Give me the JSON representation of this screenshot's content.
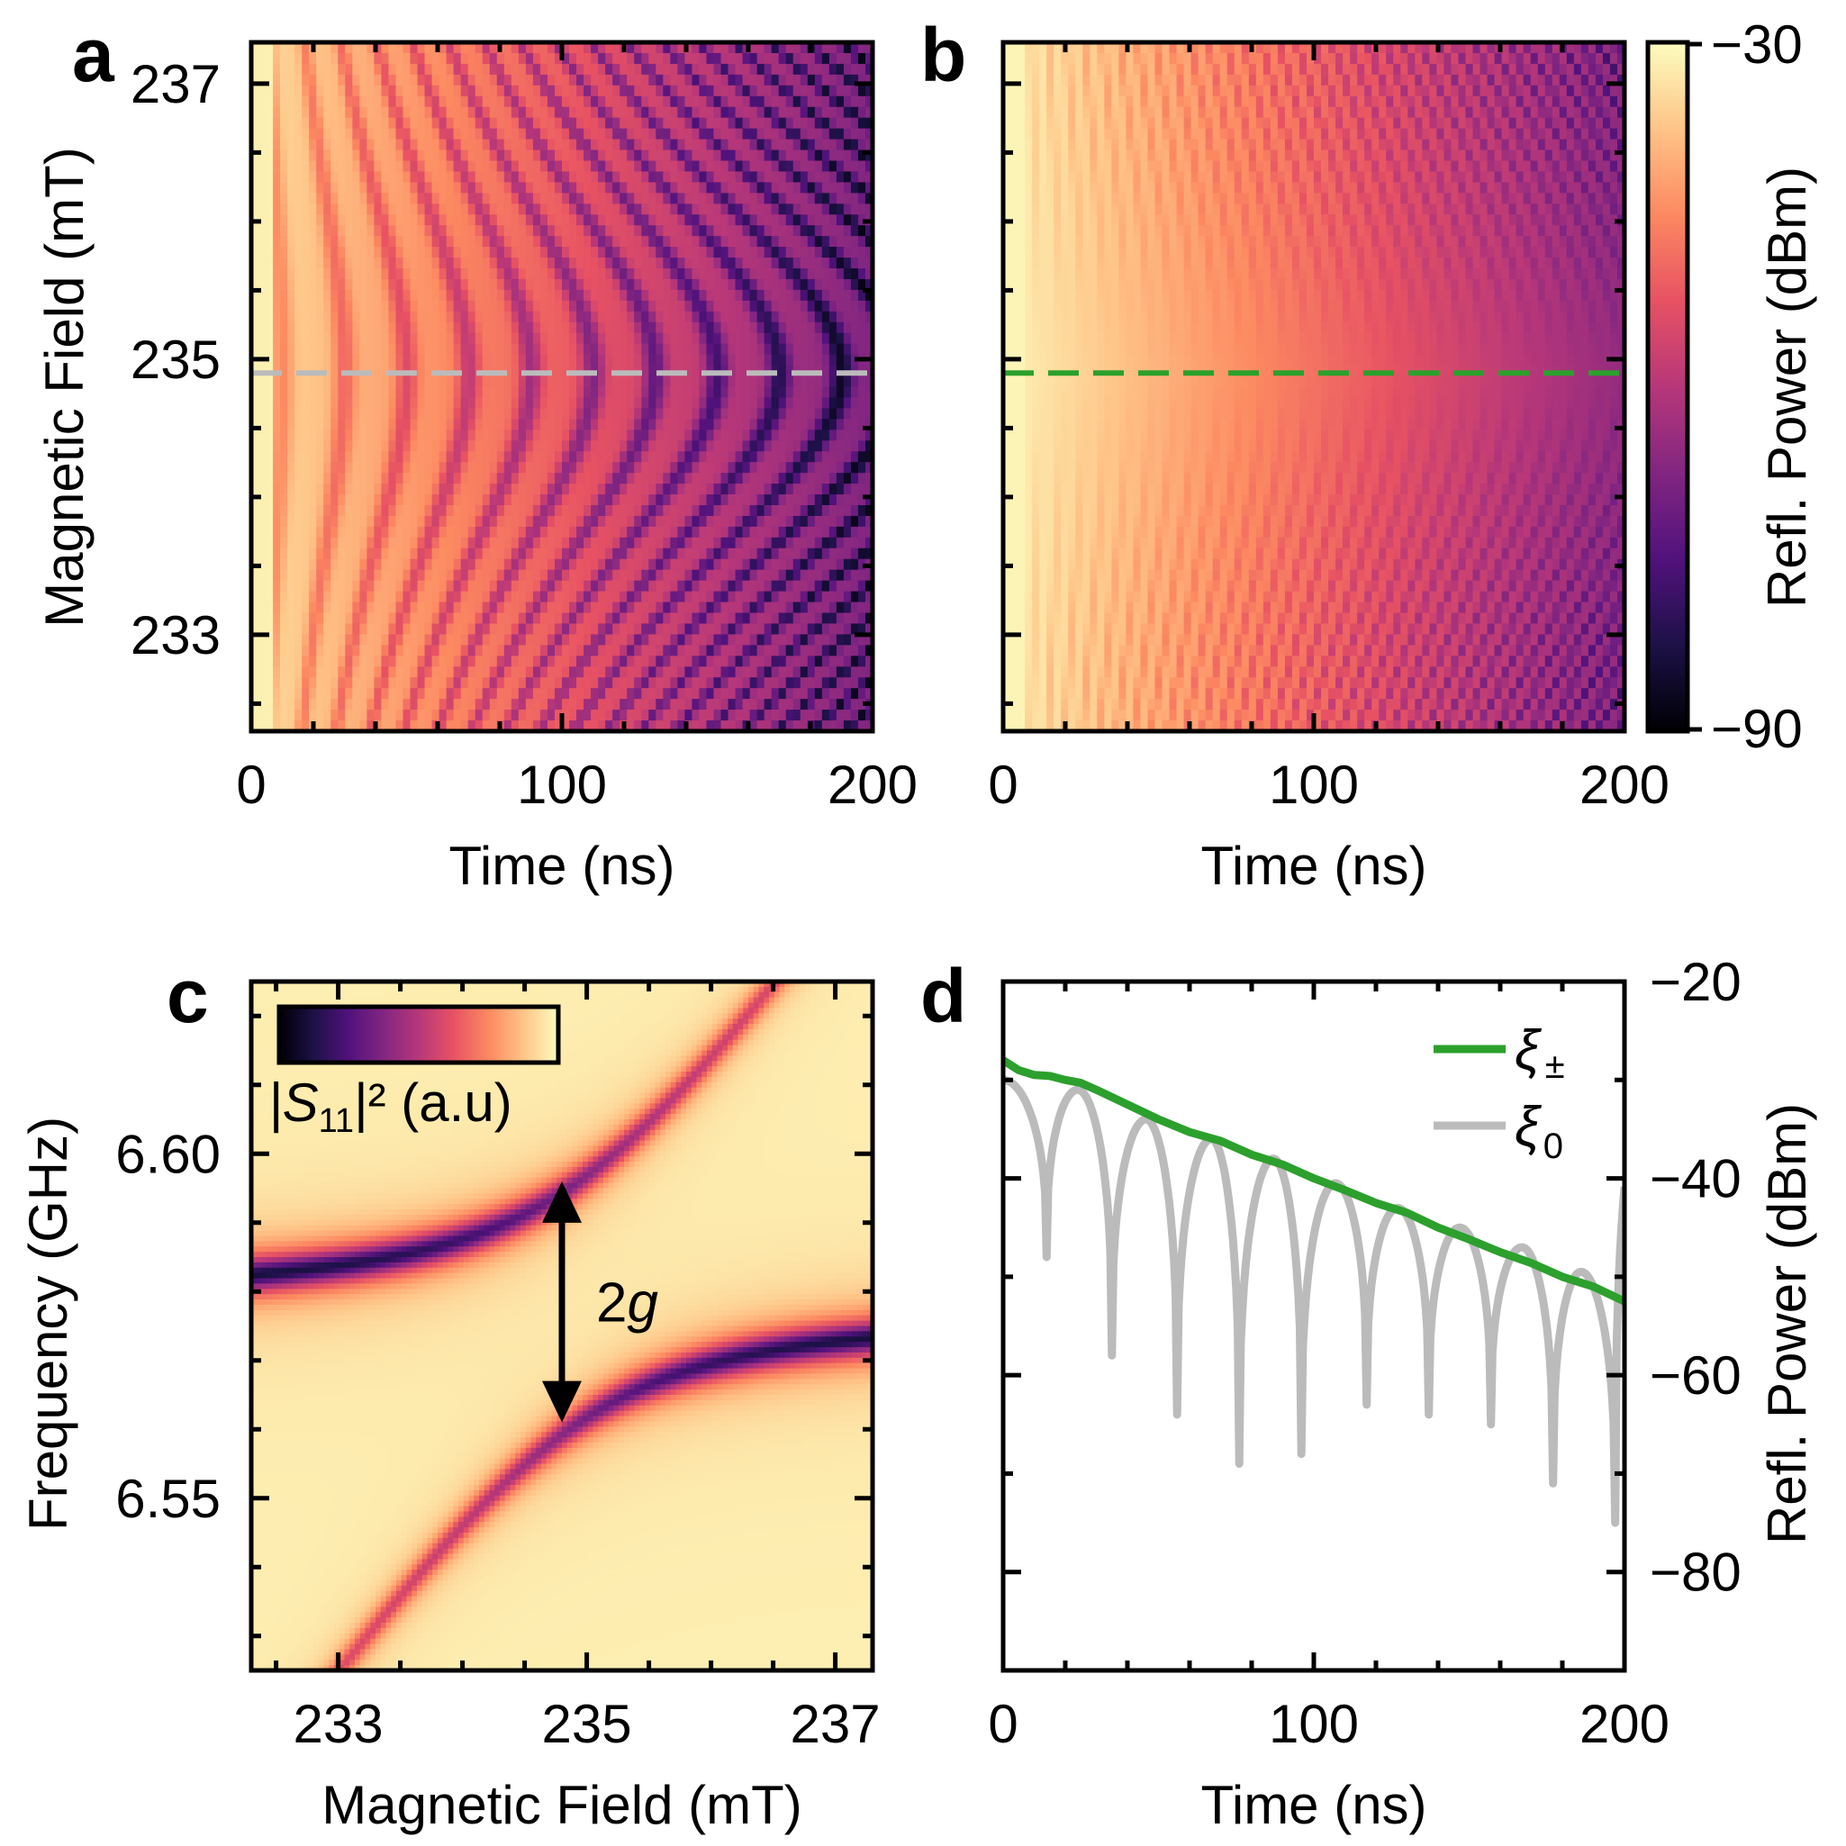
{
  "colors": {
    "green": "#2ca02c",
    "gray": "#bbbbbb",
    "magma": [
      "#000004",
      "#1d1147",
      "#51127c",
      "#822681",
      "#b73779",
      "#e75263",
      "#fc8961",
      "#fec488",
      "#fcfdbf"
    ]
  },
  "panels": {
    "a": {
      "letter": "a"
    },
    "b": {
      "letter": "b"
    },
    "c": {
      "letter": "c"
    },
    "d": {
      "letter": "d"
    }
  },
  "chart_data": [
    {
      "panel": "a",
      "type": "heatmap",
      "xlabel": "Time (ns)",
      "ylabel": "Magnetic Field (mT)",
      "xlim": [
        0,
        200
      ],
      "ylim": [
        232.3,
        237.3
      ],
      "x_ticks": [
        "0",
        "100",
        "200"
      ],
      "y_ticks": [
        "233",
        "235",
        "237"
      ],
      "y_tick_values": [
        233,
        235,
        237
      ],
      "z_units": "dBm",
      "z_range": [
        -90,
        -30
      ],
      "reference_line": {
        "axis": "y",
        "value": 234.9,
        "color": "gray",
        "style": "dashed"
      },
      "description_values": {
        "oscillation_period_ns": 20
      }
    },
    {
      "panel": "b",
      "type": "heatmap",
      "xlabel": "Time (ns)",
      "ylabel": "",
      "xlim": [
        0,
        200
      ],
      "ylim": [
        232.3,
        237.3
      ],
      "x_ticks": [
        "0",
        "100",
        "200"
      ],
      "z_units": "dBm",
      "z_range": [
        -90,
        -30
      ],
      "colorbar": {
        "label": "Refl. Power (dBm)",
        "ticks": [
          "−30",
          "−90"
        ],
        "range": [
          -90,
          -30
        ]
      },
      "reference_line": {
        "axis": "y",
        "value": 234.9,
        "color": "green",
        "style": "dashed"
      }
    },
    {
      "panel": "c",
      "type": "heatmap",
      "xlabel": "Magnetic Field (mT)",
      "ylabel": "Frequency (GHz)",
      "xlim": [
        232.3,
        237.3
      ],
      "ylim": [
        6.525,
        6.625
      ],
      "x_ticks": [
        "233",
        "235",
        "237"
      ],
      "x_tick_values": [
        233,
        235,
        237
      ],
      "y_ticks": [
        "6.60",
        "6.55"
      ],
      "y_tick_values": [
        6.6,
        6.55
      ],
      "colorbar": {
        "label_main": "|S",
        "label_sub": "11",
        "label_rest": "|² (a.u)"
      },
      "annotation": {
        "text": "2",
        "text_italic": "g",
        "field_mT": 234.8,
        "freq_top_GHz": 6.596,
        "freq_bottom_GHz": 6.561
      },
      "avoided_crossing": {
        "center_field_mT": 234.9,
        "center_freq_GHz": 6.578,
        "coupling_g_GHz": 0.0175
      }
    },
    {
      "panel": "d",
      "type": "line",
      "xlabel": "Time (ns)",
      "ylabel": "Refl. Power (dBm)",
      "xlim": [
        0,
        200
      ],
      "ylim": [
        -90,
        -20
      ],
      "x_ticks": [
        "0",
        "100",
        "200"
      ],
      "y_ticks": [
        "−20",
        "−40",
        "−60",
        "−80"
      ],
      "y_tick_values": [
        -20,
        -40,
        -60,
        -80
      ],
      "series": [
        {
          "name": "ξ±",
          "legend_main": "ξ",
          "legend_sub": "±",
          "color": "green",
          "x": [
            0,
            5,
            10,
            15,
            20,
            25,
            30,
            40,
            50,
            60,
            70,
            80,
            90,
            100,
            110,
            120,
            130,
            140,
            150,
            160,
            170,
            180,
            190,
            200
          ],
          "y": [
            -28,
            -29,
            -29.5,
            -29.6,
            -30,
            -30.3,
            -31,
            -32.5,
            -34,
            -35.3,
            -36.2,
            -37.6,
            -38.6,
            -40,
            -41.2,
            -42.5,
            -43.5,
            -45,
            -46.2,
            -47.5,
            -48.6,
            -50,
            -51,
            -52.5
          ]
        },
        {
          "name": "ξ0",
          "legend_main": "ξ",
          "legend_sub": "0",
          "color": "gray",
          "peaks_x": [
            0,
            24,
            46,
            67,
            87,
            107,
            127,
            147,
            167,
            186
          ],
          "peaks_y": [
            -30,
            -31,
            -34,
            -36,
            -38,
            -40.5,
            -43,
            -45,
            -47,
            -49.5
          ],
          "dips_x": [
            14,
            35,
            56,
            76,
            96,
            117,
            137,
            157,
            177,
            197
          ],
          "dips_y": [
            -48,
            -58,
            -64,
            -69,
            -68,
            -63,
            -64,
            -65,
            -71,
            -75
          ]
        }
      ]
    }
  ]
}
